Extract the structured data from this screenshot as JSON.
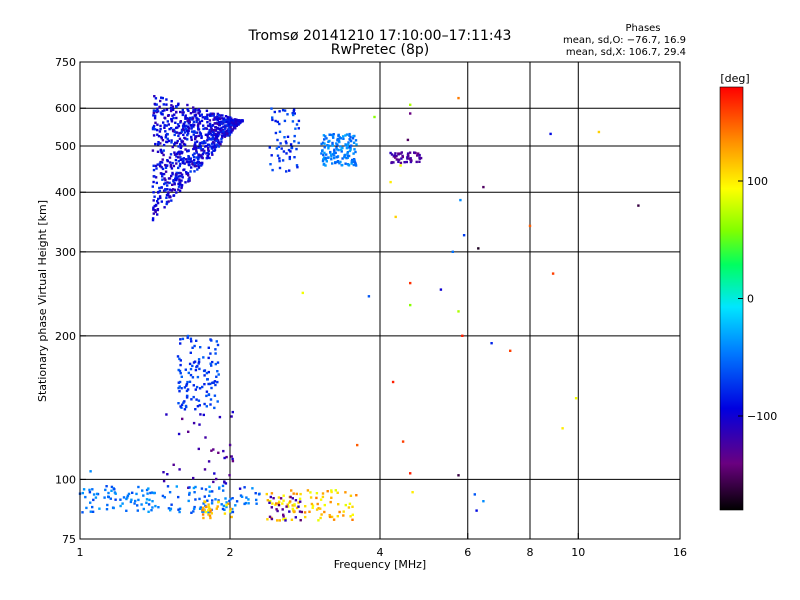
{
  "title_line1": "Tromsø 20141210 17:10:00–17:11:43",
  "title_line2": "RwPretec (8p)",
  "stats": {
    "heading": "Phases",
    "line1": "mean, sd,O: −76.7, 16.9",
    "line2": "mean, sd,X: 106.7, 29.4"
  },
  "colorbar": {
    "unit_label": "[deg]",
    "range": [
      -180,
      180
    ],
    "ticks": [
      {
        "value": 100,
        "label": "100"
      },
      {
        "value": 0,
        "label": "0"
      },
      {
        "value": -100,
        "label": "−100"
      }
    ]
  },
  "chart_data": {
    "type": "scatter",
    "xlabel": "Frequency [MHz]",
    "ylabel": "Stationary phase Virtual Height [km]",
    "x_scale": "log",
    "y_scale": "log",
    "xlim": [
      1,
      16
    ],
    "ylim": [
      75,
      750
    ],
    "grid": true,
    "x_ticks": [
      {
        "value": 1,
        "label": "1"
      },
      {
        "value": 2,
        "label": "2"
      },
      {
        "value": 4,
        "label": "4"
      },
      {
        "value": 6,
        "label": "6"
      },
      {
        "value": 8,
        "label": "8"
      },
      {
        "value": 10,
        "label": "10"
      },
      {
        "value": 16,
        "label": "16"
      }
    ],
    "x_grid": [
      2,
      4,
      6,
      8,
      10
    ],
    "y_ticks": [
      {
        "value": 75,
        "label": "75"
      },
      {
        "value": 100,
        "label": "100"
      },
      {
        "value": 200,
        "label": "200"
      },
      {
        "value": 300,
        "label": "300"
      },
      {
        "value": 400,
        "label": "400"
      },
      {
        "value": 500,
        "label": "500"
      },
      {
        "value": 600,
        "label": "600"
      },
      {
        "value": 750,
        "label": "750"
      }
    ],
    "y_grid": [
      100,
      200,
      300,
      400,
      500,
      600
    ],
    "clusters": [
      {
        "x": [
          1.4,
          2.12
        ],
        "y": [
          345,
          640
        ],
        "phase": [
          -120,
          -70
        ],
        "count": 900,
        "shape": "wedge"
      },
      {
        "x": [
          2.4,
          2.75
        ],
        "y": [
          440,
          600
        ],
        "phase": [
          -90,
          -50
        ],
        "count": 60
      },
      {
        "x": [
          3.05,
          3.6
        ],
        "y": [
          455,
          530
        ],
        "phase": [
          -60,
          -30
        ],
        "count": 140
      },
      {
        "x": [
          4.2,
          4.85
        ],
        "y": [
          460,
          485
        ],
        "phase": [
          -140,
          -110
        ],
        "count": 45
      },
      {
        "x": [
          1.57,
          1.9
        ],
        "y": [
          140,
          200
        ],
        "phase": [
          -85,
          -55
        ],
        "count": 120
      },
      {
        "x": [
          1.45,
          2.1
        ],
        "y": [
          95,
          140
        ],
        "phase": [
          -140,
          -100
        ],
        "count": 40
      },
      {
        "x": [
          1.0,
          2.3
        ],
        "y": [
          85,
          97
        ],
        "phase": [
          -70,
          -30
        ],
        "count": 160
      },
      {
        "x": [
          1.75,
          2.05
        ],
        "y": [
          83,
          90
        ],
        "phase": [
          90,
          140
        ],
        "count": 30
      },
      {
        "x": [
          2.35,
          3.6
        ],
        "y": [
          82,
          95
        ],
        "phase": [
          85,
          140
        ],
        "count": 90
      },
      {
        "x": [
          2.4,
          2.8
        ],
        "y": [
          82,
          92
        ],
        "phase": [
          -150,
          -110
        ],
        "count": 25
      }
    ],
    "points": [
      {
        "x": 5.75,
        "y": 630,
        "phase": 140
      },
      {
        "x": 4.6,
        "y": 610,
        "phase": 70
      },
      {
        "x": 3.9,
        "y": 575,
        "phase": 60
      },
      {
        "x": 4.6,
        "y": 585,
        "phase": -140
      },
      {
        "x": 8.8,
        "y": 530,
        "phase": -90
      },
      {
        "x": 11.0,
        "y": 535,
        "phase": 110
      },
      {
        "x": 4.55,
        "y": 515,
        "phase": -150
      },
      {
        "x": 4.4,
        "y": 455,
        "phase": 90
      },
      {
        "x": 4.2,
        "y": 420,
        "phase": 100
      },
      {
        "x": 6.45,
        "y": 410,
        "phase": -150
      },
      {
        "x": 5.8,
        "y": 385,
        "phase": -40
      },
      {
        "x": 13.2,
        "y": 375,
        "phase": -160
      },
      {
        "x": 4.3,
        "y": 355,
        "phase": 110
      },
      {
        "x": 8.0,
        "y": 340,
        "phase": 150
      },
      {
        "x": 5.9,
        "y": 325,
        "phase": -70
      },
      {
        "x": 6.3,
        "y": 305,
        "phase": -170
      },
      {
        "x": 5.6,
        "y": 300,
        "phase": -50
      },
      {
        "x": 8.9,
        "y": 270,
        "phase": 160
      },
      {
        "x": 4.6,
        "y": 258,
        "phase": 165
      },
      {
        "x": 5.3,
        "y": 250,
        "phase": -100
      },
      {
        "x": 2.8,
        "y": 246,
        "phase": 90
      },
      {
        "x": 3.8,
        "y": 242,
        "phase": -60
      },
      {
        "x": 4.6,
        "y": 232,
        "phase": 60
      },
      {
        "x": 5.75,
        "y": 225,
        "phase": 70
      },
      {
        "x": 5.85,
        "y": 200,
        "phase": 170
      },
      {
        "x": 6.7,
        "y": 193,
        "phase": -80
      },
      {
        "x": 7.3,
        "y": 186,
        "phase": 160
      },
      {
        "x": 4.25,
        "y": 160,
        "phase": 170
      },
      {
        "x": 9.9,
        "y": 148,
        "phase": 90
      },
      {
        "x": 9.3,
        "y": 128,
        "phase": 100
      },
      {
        "x": 3.6,
        "y": 118,
        "phase": 150
      },
      {
        "x": 4.45,
        "y": 120,
        "phase": 160
      },
      {
        "x": 4.6,
        "y": 103,
        "phase": 170
      },
      {
        "x": 5.75,
        "y": 102,
        "phase": -160
      },
      {
        "x": 4.65,
        "y": 94,
        "phase": 100
      },
      {
        "x": 6.2,
        "y": 93,
        "phase": -60
      },
      {
        "x": 6.45,
        "y": 90,
        "phase": -40
      },
      {
        "x": 6.25,
        "y": 86,
        "phase": -90
      },
      {
        "x": 1.05,
        "y": 104,
        "phase": -40
      }
    ]
  }
}
